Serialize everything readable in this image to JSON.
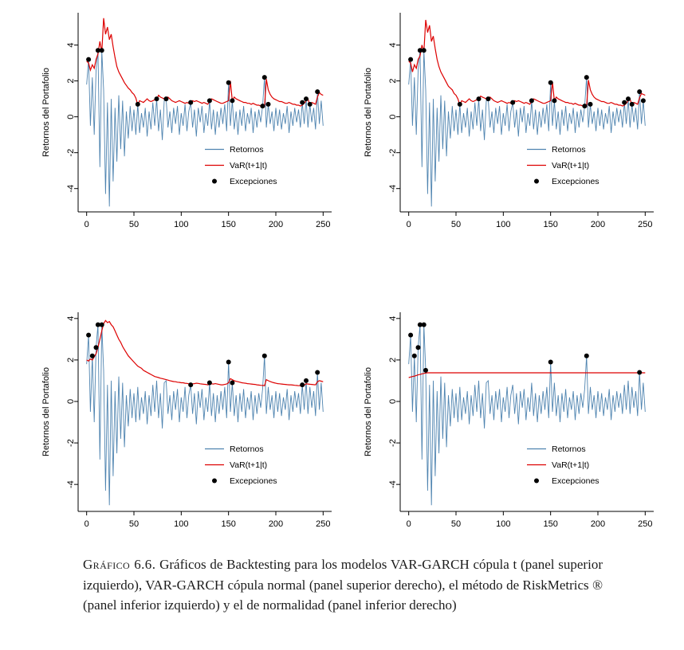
{
  "page": {
    "background": "#ffffff"
  },
  "caption": {
    "label": "Gráfico 6.6.",
    "text": " Gráficos de Backtesting para los modelos VAR-GARCH cópula t (panel superior izquierdo), VAR-GARCH cópula normal (panel superior derecho), el método de RiskMetrics ® (panel inferior izquierdo) y el de normalidad (panel inferior derecho)"
  },
  "chart_data": {
    "type": "line",
    "x_start": 0,
    "x_step": 2,
    "n_points": 126,
    "xlim": [
      0,
      250
    ],
    "xticks": [
      0,
      50,
      100,
      150,
      200,
      250
    ],
    "yticks": [
      -4,
      -2,
      0,
      2,
      4
    ],
    "ylabel": "Retornos del Portafolio",
    "xlabel": "",
    "grid": false,
    "colors": {
      "returns": "#4f84b0",
      "var": "#dd0000",
      "exceptions": "#000000",
      "axis": "#000000"
    },
    "legend": {
      "position": "lower-right",
      "border": false,
      "entries": [
        {
          "label": "Retornos",
          "type": "line",
          "color": "#4f84b0"
        },
        {
          "label": "VaR(t+1|t)",
          "type": "line",
          "color": "#dd0000"
        },
        {
          "label": "Excepciones",
          "type": "point",
          "color": "#000000"
        }
      ]
    },
    "panels": [
      {
        "title": "VAR-GARCH cópula t",
        "position": "top-left",
        "ylim": [
          -5.3,
          5.8
        ],
        "var_series": "var_copula_t",
        "exceptions": "exc_copula_t"
      },
      {
        "title": "VAR-GARCH cópula normal",
        "position": "top-right",
        "ylim": [
          -5.3,
          5.8
        ],
        "var_series": "var_copula_normal",
        "exceptions": "exc_copula_normal"
      },
      {
        "title": "RiskMetrics",
        "position": "bottom-left",
        "ylim": [
          -5.3,
          4.3
        ],
        "var_series": "var_riskmetrics",
        "exceptions": "exc_riskmetrics"
      },
      {
        "title": "Normalidad",
        "position": "bottom-right",
        "ylim": [
          -5.3,
          4.3
        ],
        "var_series": "var_normal",
        "exceptions": "exc_normal"
      }
    ],
    "series_values": {
      "returns": [
        1.8,
        3.2,
        -0.5,
        2.2,
        -1.0,
        2.6,
        3.7,
        -2.8,
        3.7,
        1.5,
        -4.3,
        0.8,
        -5.0,
        1.0,
        -3.6,
        0.5,
        -2.5,
        1.2,
        -1.8,
        0.9,
        -2.2,
        0.3,
        -1.2,
        0.6,
        -0.8,
        0.4,
        -1.0,
        0.7,
        -0.9,
        0.2,
        -0.6,
        0.5,
        -1.1,
        0.3,
        -0.7,
        0.8,
        -0.5,
        1.0,
        -0.8,
        0.4,
        -1.3,
        0.9,
        1.0,
        -0.6,
        0.3,
        -0.9,
        0.5,
        -0.4,
        0.6,
        -1.0,
        0.2,
        -0.5,
        0.7,
        -0.8,
        0.3,
        0.8,
        -0.6,
        0.4,
        -1.1,
        0.5,
        -0.3,
        0.6,
        -0.9,
        0.2,
        -0.5,
        0.9,
        -0.7,
        0.4,
        -1.0,
        0.3,
        -0.6,
        0.5,
        -0.4,
        0.7,
        -0.8,
        1.9,
        -0.5,
        0.9,
        -0.7,
        0.3,
        -1.0,
        0.4,
        -0.5,
        0.6,
        -0.8,
        0.2,
        -0.4,
        0.5,
        -0.9,
        0.3,
        -0.6,
        0.4,
        -0.3,
        0.6,
        2.2,
        -0.6,
        0.7,
        -0.4,
        0.3,
        -0.8,
        0.5,
        -0.5,
        0.4,
        -0.7,
        0.2,
        -0.4,
        0.6,
        -0.9,
        0.3,
        -0.5,
        0.5,
        -0.3,
        0.4,
        -0.6,
        0.8,
        -0.4,
        1.0,
        -0.6,
        0.7,
        -0.3,
        0.5,
        -0.7,
        1.4,
        -0.4,
        0.9,
        -0.5
      ],
      "var_copula_t": [
        3.1,
        3.0,
        2.6,
        2.9,
        2.7,
        3.2,
        3.5,
        4.2,
        3.6,
        5.5,
        4.6,
        5.0,
        4.3,
        4.6,
        3.9,
        3.3,
        2.8,
        2.5,
        2.3,
        2.1,
        1.9,
        1.75,
        1.6,
        1.5,
        1.35,
        1.25,
        1.05,
        0.65,
        0.9,
        0.85,
        0.8,
        0.9,
        1.0,
        0.9,
        0.85,
        0.9,
        0.95,
        0.95,
        1.2,
        1.1,
        1.05,
        1.0,
        0.95,
        1.1,
        1.0,
        0.9,
        0.85,
        0.8,
        0.85,
        0.9,
        0.85,
        0.8,
        0.75,
        0.8,
        0.75,
        0.75,
        0.9,
        0.85,
        0.9,
        0.85,
        0.8,
        0.75,
        0.8,
        0.75,
        0.7,
        0.85,
        1.0,
        0.95,
        0.9,
        0.85,
        0.8,
        0.75,
        0.75,
        0.8,
        0.85,
        0.9,
        2.0,
        0.88,
        1.1,
        1.0,
        0.95,
        0.9,
        0.85,
        0.8,
        0.8,
        0.75,
        0.75,
        0.7,
        0.75,
        0.7,
        0.65,
        0.65,
        0.6,
        0.55,
        0.55,
        2.1,
        1.5,
        1.25,
        1.1,
        1.0,
        0.95,
        0.9,
        0.85,
        0.85,
        0.8,
        0.75,
        0.75,
        0.8,
        0.75,
        0.7,
        0.7,
        0.65,
        0.65,
        0.6,
        0.65,
        0.75,
        0.9,
        1.0,
        0.65,
        0.8,
        0.75,
        0.7,
        1.1,
        1.35,
        1.25,
        1.2
      ],
      "var_copula_normal": [
        3.1,
        3.0,
        2.5,
        2.9,
        2.7,
        3.2,
        3.4,
        4.0,
        3.6,
        5.4,
        4.7,
        5.1,
        4.2,
        4.5,
        3.8,
        3.2,
        2.8,
        2.5,
        2.3,
        2.1,
        1.9,
        1.7,
        1.6,
        1.5,
        1.3,
        1.2,
        1.0,
        0.65,
        0.9,
        0.85,
        0.8,
        0.9,
        1.0,
        0.9,
        0.85,
        0.9,
        0.95,
        0.95,
        1.15,
        1.1,
        1.05,
        1.0,
        0.95,
        1.1,
        1.0,
        0.9,
        0.85,
        0.8,
        0.85,
        0.9,
        0.85,
        0.8,
        0.75,
        0.8,
        0.75,
        0.75,
        0.9,
        0.85,
        0.9,
        0.85,
        0.8,
        0.75,
        0.8,
        0.75,
        0.7,
        0.85,
        1.0,
        0.95,
        0.9,
        0.85,
        0.8,
        0.75,
        0.75,
        0.8,
        0.85,
        0.9,
        1.95,
        0.88,
        1.1,
        1.0,
        0.95,
        0.9,
        0.85,
        0.8,
        0.8,
        0.75,
        0.75,
        0.7,
        0.75,
        0.7,
        0.65,
        0.65,
        0.6,
        0.55,
        0.55,
        2.05,
        1.5,
        1.25,
        1.1,
        1.0,
        0.95,
        0.9,
        0.85,
        0.85,
        0.8,
        0.75,
        0.75,
        0.8,
        0.75,
        0.7,
        0.7,
        0.65,
        0.65,
        0.6,
        0.65,
        0.75,
        0.9,
        1.0,
        0.65,
        0.8,
        0.75,
        0.7,
        1.05,
        1.3,
        1.25,
        1.2
      ],
      "var_riskmetrics": [
        2.0,
        1.95,
        2.05,
        2.0,
        2.15,
        2.3,
        2.6,
        3.0,
        3.4,
        3.75,
        3.9,
        3.8,
        3.85,
        3.7,
        3.6,
        3.4,
        3.2,
        3.0,
        2.85,
        2.65,
        2.5,
        2.35,
        2.2,
        2.1,
        2.0,
        1.9,
        1.8,
        1.7,
        1.65,
        1.6,
        1.5,
        1.45,
        1.4,
        1.35,
        1.3,
        1.25,
        1.2,
        1.18,
        1.15,
        1.12,
        1.1,
        1.08,
        1.05,
        1.03,
        1.0,
        0.98,
        0.96,
        0.95,
        0.93,
        0.92,
        0.9,
        0.9,
        0.88,
        0.87,
        0.85,
        0.84,
        0.85,
        0.86,
        0.88,
        0.87,
        0.85,
        0.84,
        0.83,
        0.82,
        0.8,
        0.82,
        0.85,
        0.84,
        0.86,
        0.84,
        0.82,
        0.8,
        0.8,
        0.82,
        0.84,
        0.9,
        1.1,
        1.05,
        1.0,
        0.97,
        0.95,
        0.93,
        0.9,
        0.89,
        0.88,
        0.86,
        0.85,
        0.84,
        0.83,
        0.82,
        0.8,
        0.79,
        0.78,
        0.77,
        0.76,
        1.05,
        1.0,
        0.96,
        0.93,
        0.9,
        0.88,
        0.86,
        0.85,
        0.84,
        0.83,
        0.82,
        0.81,
        0.8,
        0.8,
        0.79,
        0.78,
        0.77,
        0.76,
        0.76,
        0.77,
        0.78,
        0.85,
        0.84,
        0.83,
        0.82,
        0.81,
        0.8,
        0.95,
        1.0,
        0.98,
        0.95
      ],
      "var_normal": [
        1.15,
        1.18,
        1.2,
        1.22,
        1.25,
        1.28,
        1.3,
        1.33,
        1.35,
        1.37,
        1.38,
        1.38,
        1.38,
        1.38,
        1.38,
        1.38,
        1.38,
        1.38,
        1.38,
        1.38,
        1.38,
        1.38,
        1.38,
        1.38,
        1.38,
        1.38,
        1.38,
        1.38,
        1.38,
        1.38,
        1.38,
        1.38,
        1.38,
        1.38,
        1.38,
        1.38,
        1.38,
        1.38,
        1.38,
        1.38,
        1.38,
        1.38,
        1.38,
        1.38,
        1.38,
        1.38,
        1.38,
        1.38,
        1.38,
        1.38,
        1.38,
        1.38,
        1.38,
        1.38,
        1.38,
        1.38,
        1.38,
        1.38,
        1.38,
        1.38,
        1.38,
        1.38,
        1.38,
        1.38,
        1.38,
        1.38,
        1.38,
        1.38,
        1.38,
        1.38,
        1.38,
        1.38,
        1.38,
        1.38,
        1.38,
        1.38,
        1.38,
        1.38,
        1.38,
        1.38,
        1.38,
        1.38,
        1.38,
        1.38,
        1.38,
        1.38,
        1.38,
        1.38,
        1.38,
        1.38,
        1.38,
        1.38,
        1.38,
        1.38,
        1.38,
        1.38,
        1.38,
        1.38,
        1.38,
        1.38,
        1.38,
        1.38,
        1.38,
        1.38,
        1.38,
        1.38,
        1.38,
        1.38,
        1.38,
        1.38,
        1.38,
        1.38,
        1.38,
        1.38,
        1.38,
        1.38,
        1.38,
        1.38,
        1.38,
        1.38,
        1.38,
        1.38,
        1.38,
        1.38,
        1.38,
        1.38
      ]
    },
    "exceptions_points": {
      "exc_copula_t": [
        [
          2,
          3.2
        ],
        [
          12,
          3.7
        ],
        [
          16,
          3.7
        ],
        [
          54,
          0.7
        ],
        [
          74,
          1.0
        ],
        [
          84,
          1.0
        ],
        [
          110,
          0.8
        ],
        [
          130,
          0.9
        ],
        [
          150,
          1.9
        ],
        [
          154,
          0.9
        ],
        [
          186,
          0.6
        ],
        [
          188,
          2.2
        ],
        [
          192,
          0.7
        ],
        [
          228,
          0.8
        ],
        [
          232,
          1.0
        ],
        [
          236,
          0.7
        ],
        [
          244,
          1.4
        ]
      ],
      "exc_copula_normal": [
        [
          2,
          3.2
        ],
        [
          12,
          3.7
        ],
        [
          16,
          3.7
        ],
        [
          54,
          0.7
        ],
        [
          74,
          1.0
        ],
        [
          84,
          1.0
        ],
        [
          110,
          0.8
        ],
        [
          130,
          0.9
        ],
        [
          150,
          1.9
        ],
        [
          154,
          0.9
        ],
        [
          186,
          0.6
        ],
        [
          188,
          2.2
        ],
        [
          192,
          0.7
        ],
        [
          228,
          0.8
        ],
        [
          232,
          1.0
        ],
        [
          236,
          0.7
        ],
        [
          244,
          1.4
        ],
        [
          248,
          0.9
        ]
      ],
      "exc_riskmetrics": [
        [
          2,
          3.2
        ],
        [
          6,
          2.2
        ],
        [
          10,
          2.6
        ],
        [
          12,
          3.7
        ],
        [
          16,
          3.7
        ],
        [
          110,
          0.8
        ],
        [
          130,
          0.9
        ],
        [
          150,
          1.9
        ],
        [
          154,
          0.9
        ],
        [
          188,
          2.2
        ],
        [
          228,
          0.8
        ],
        [
          232,
          1.0
        ],
        [
          244,
          1.4
        ]
      ],
      "exc_normal": [
        [
          2,
          3.2
        ],
        [
          6,
          2.2
        ],
        [
          10,
          2.6
        ],
        [
          12,
          3.7
        ],
        [
          16,
          3.7
        ],
        [
          18,
          1.5
        ],
        [
          150,
          1.9
        ],
        [
          188,
          2.2
        ],
        [
          244,
          1.4
        ]
      ]
    }
  }
}
